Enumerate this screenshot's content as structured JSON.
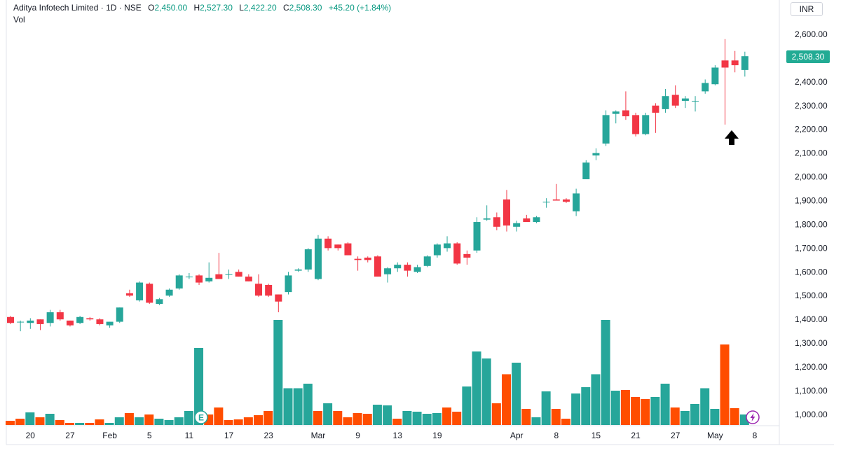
{
  "header": {
    "symbol_title": "Aditya Infotech Limited · 1D · NSE",
    "open_label": "O",
    "open": "2,450.00",
    "high_label": "H",
    "high": "2,527.30",
    "low_label": "L",
    "low": "2,422.20",
    "close_label": "C",
    "close": "2,508.30",
    "change": "+45.20 (+1.84%)",
    "volume_label": "Vol"
  },
  "currency": "INR",
  "last_price_tag": "2,508.30",
  "colors": {
    "up": "#26a69a",
    "down": "#f23645",
    "vol_up": "#26a69a",
    "vol_down": "#ff4d00",
    "price_tag": "#22ab94",
    "value_text": "#089981"
  },
  "markers": {
    "earnings_badge": "E",
    "dividend_icon": "lightning-icon",
    "arrow": "up-arrow-icon"
  },
  "chart_data": {
    "type": "candlestick",
    "y_axis": {
      "min": 1000,
      "max": 2600,
      "ticks": [
        "1,000.00",
        "1,100.00",
        "1,200.00",
        "1,300.00",
        "1,400.00",
        "1,500.00",
        "1,600.00",
        "1,700.00",
        "1,800.00",
        "1,900.00",
        "2,000.00",
        "2,100.00",
        "2,200.00",
        "2,300.00",
        "2,400.00",
        "2,500.00",
        "2,600.00"
      ]
    },
    "x_ticks": [
      {
        "label": "20",
        "index": 2
      },
      {
        "label": "27",
        "index": 6
      },
      {
        "label": "Feb",
        "index": 10
      },
      {
        "label": "5",
        "index": 14
      },
      {
        "label": "11",
        "index": 18
      },
      {
        "label": "17",
        "index": 22
      },
      {
        "label": "23",
        "index": 26
      },
      {
        "label": "Mar",
        "index": 31
      },
      {
        "label": "9",
        "index": 35
      },
      {
        "label": "13",
        "index": 39
      },
      {
        "label": "19",
        "index": 43
      },
      {
        "label": "Apr",
        "index": 51
      },
      {
        "label": "8",
        "index": 55
      },
      {
        "label": "15",
        "index": 59
      },
      {
        "label": "21",
        "index": 63
      },
      {
        "label": "27",
        "index": 67
      },
      {
        "label": "May",
        "index": 71
      },
      {
        "label": "8",
        "index": 75
      }
    ],
    "candles": [
      {
        "o": 1410,
        "h": 1415,
        "l": 1380,
        "c": 1385
      },
      {
        "o": 1390,
        "h": 1395,
        "l": 1350,
        "c": 1390
      },
      {
        "o": 1385,
        "h": 1405,
        "l": 1360,
        "c": 1395
      },
      {
        "o": 1400,
        "h": 1400,
        "l": 1355,
        "c": 1380
      },
      {
        "o": 1385,
        "h": 1440,
        "l": 1370,
        "c": 1430
      },
      {
        "o": 1430,
        "h": 1440,
        "l": 1395,
        "c": 1400
      },
      {
        "o": 1395,
        "h": 1395,
        "l": 1370,
        "c": 1375
      },
      {
        "o": 1385,
        "h": 1415,
        "l": 1380,
        "c": 1410
      },
      {
        "o": 1405,
        "h": 1410,
        "l": 1395,
        "c": 1400
      },
      {
        "o": 1400,
        "h": 1405,
        "l": 1375,
        "c": 1380
      },
      {
        "o": 1375,
        "h": 1390,
        "l": 1365,
        "c": 1390
      },
      {
        "o": 1390,
        "h": 1450,
        "l": 1385,
        "c": 1450
      },
      {
        "o": 1510,
        "h": 1525,
        "l": 1495,
        "c": 1500
      },
      {
        "o": 1480,
        "h": 1560,
        "l": 1475,
        "c": 1555
      },
      {
        "o": 1550,
        "h": 1555,
        "l": 1465,
        "c": 1470
      },
      {
        "o": 1465,
        "h": 1490,
        "l": 1460,
        "c": 1485
      },
      {
        "o": 1500,
        "h": 1530,
        "l": 1495,
        "c": 1525
      },
      {
        "o": 1530,
        "h": 1590,
        "l": 1525,
        "c": 1585
      },
      {
        "o": 1580,
        "h": 1595,
        "l": 1570,
        "c": 1580
      },
      {
        "o": 1585,
        "h": 1590,
        "l": 1545,
        "c": 1555
      },
      {
        "o": 1560,
        "h": 1640,
        "l": 1555,
        "c": 1575
      },
      {
        "o": 1590,
        "h": 1680,
        "l": 1575,
        "c": 1570
      },
      {
        "o": 1590,
        "h": 1610,
        "l": 1570,
        "c": 1590
      },
      {
        "o": 1600,
        "h": 1610,
        "l": 1580,
        "c": 1580
      },
      {
        "o": 1580,
        "h": 1590,
        "l": 1560,
        "c": 1560
      },
      {
        "o": 1550,
        "h": 1590,
        "l": 1495,
        "c": 1500
      },
      {
        "o": 1545,
        "h": 1550,
        "l": 1495,
        "c": 1500
      },
      {
        "o": 1505,
        "h": 1505,
        "l": 1430,
        "c": 1475
      },
      {
        "o": 1515,
        "h": 1600,
        "l": 1505,
        "c": 1585
      },
      {
        "o": 1605,
        "h": 1615,
        "l": 1600,
        "c": 1610
      },
      {
        "o": 1610,
        "h": 1700,
        "l": 1600,
        "c": 1695
      },
      {
        "o": 1570,
        "h": 1755,
        "l": 1565,
        "c": 1740
      },
      {
        "o": 1740,
        "h": 1750,
        "l": 1690,
        "c": 1700
      },
      {
        "o": 1715,
        "h": 1715,
        "l": 1690,
        "c": 1700
      },
      {
        "o": 1720,
        "h": 1725,
        "l": 1670,
        "c": 1670
      },
      {
        "o": 1655,
        "h": 1665,
        "l": 1605,
        "c": 1650
      },
      {
        "o": 1660,
        "h": 1665,
        "l": 1640,
        "c": 1650
      },
      {
        "o": 1665,
        "h": 1670,
        "l": 1580,
        "c": 1580
      },
      {
        "o": 1590,
        "h": 1620,
        "l": 1555,
        "c": 1615
      },
      {
        "o": 1615,
        "h": 1640,
        "l": 1600,
        "c": 1630
      },
      {
        "o": 1630,
        "h": 1640,
        "l": 1580,
        "c": 1605
      },
      {
        "o": 1600,
        "h": 1630,
        "l": 1595,
        "c": 1620
      },
      {
        "o": 1625,
        "h": 1670,
        "l": 1620,
        "c": 1665
      },
      {
        "o": 1670,
        "h": 1720,
        "l": 1660,
        "c": 1715
      },
      {
        "o": 1700,
        "h": 1750,
        "l": 1685,
        "c": 1720
      },
      {
        "o": 1720,
        "h": 1725,
        "l": 1630,
        "c": 1635
      },
      {
        "o": 1675,
        "h": 1690,
        "l": 1630,
        "c": 1660
      },
      {
        "o": 1690,
        "h": 1830,
        "l": 1680,
        "c": 1810
      },
      {
        "o": 1820,
        "h": 1880,
        "l": 1815,
        "c": 1825
      },
      {
        "o": 1830,
        "h": 1850,
        "l": 1775,
        "c": 1790
      },
      {
        "o": 1905,
        "h": 1945,
        "l": 1770,
        "c": 1795
      },
      {
        "o": 1790,
        "h": 1815,
        "l": 1770,
        "c": 1805
      },
      {
        "o": 1825,
        "h": 1840,
        "l": 1810,
        "c": 1810
      },
      {
        "o": 1810,
        "h": 1835,
        "l": 1805,
        "c": 1830
      },
      {
        "o": 1895,
        "h": 1910,
        "l": 1870,
        "c": 1895
      },
      {
        "o": 1905,
        "h": 1970,
        "l": 1900,
        "c": 1900
      },
      {
        "o": 1905,
        "h": 1910,
        "l": 1890,
        "c": 1895
      },
      {
        "o": 1855,
        "h": 1950,
        "l": 1835,
        "c": 1930
      },
      {
        "o": 1990,
        "h": 2070,
        "l": 1990,
        "c": 2060
      },
      {
        "o": 2090,
        "h": 2120,
        "l": 2070,
        "c": 2100
      },
      {
        "o": 2140,
        "h": 2280,
        "l": 2130,
        "c": 2260
      },
      {
        "o": 2265,
        "h": 2280,
        "l": 2225,
        "c": 2275
      },
      {
        "o": 2280,
        "h": 2360,
        "l": 2240,
        "c": 2255
      },
      {
        "o": 2260,
        "h": 2270,
        "l": 2170,
        "c": 2180
      },
      {
        "o": 2180,
        "h": 2270,
        "l": 2175,
        "c": 2260
      },
      {
        "o": 2300,
        "h": 2310,
        "l": 2185,
        "c": 2270
      },
      {
        "o": 2285,
        "h": 2370,
        "l": 2270,
        "c": 2340
      },
      {
        "o": 2345,
        "h": 2385,
        "l": 2290,
        "c": 2300
      },
      {
        "o": 2320,
        "h": 2340,
        "l": 2290,
        "c": 2330
      },
      {
        "o": 2320,
        "h": 2340,
        "l": 2275,
        "c": 2320
      },
      {
        "o": 2360,
        "h": 2410,
        "l": 2350,
        "c": 2395
      },
      {
        "o": 2390,
        "h": 2470,
        "l": 2385,
        "c": 2460
      },
      {
        "o": 2490,
        "h": 2580,
        "l": 2220,
        "c": 2460
      },
      {
        "o": 2490,
        "h": 2530,
        "l": 2440,
        "c": 2470
      },
      {
        "o": 2450,
        "h": 2527,
        "l": 2422,
        "c": 2508
      }
    ],
    "volume_bars": [
      {
        "v": 0.12,
        "up": false
      },
      {
        "v": 0.18,
        "up": false
      },
      {
        "v": 0.36,
        "up": true
      },
      {
        "v": 0.22,
        "up": false
      },
      {
        "v": 0.32,
        "up": true
      },
      {
        "v": 0.14,
        "up": false
      },
      {
        "v": 0.06,
        "up": false
      },
      {
        "v": 0.06,
        "up": true
      },
      {
        "v": 0.06,
        "up": false
      },
      {
        "v": 0.16,
        "up": false
      },
      {
        "v": 0.06,
        "up": true
      },
      {
        "v": 0.22,
        "up": true
      },
      {
        "v": 0.34,
        "up": false
      },
      {
        "v": 0.22,
        "up": true
      },
      {
        "v": 0.3,
        "up": false
      },
      {
        "v": 0.18,
        "up": true
      },
      {
        "v": 0.14,
        "up": true
      },
      {
        "v": 0.22,
        "up": true
      },
      {
        "v": 0.4,
        "up": true
      },
      {
        "v": 2.2,
        "up": true
      },
      {
        "v": 0.3,
        "up": false
      },
      {
        "v": 0.5,
        "up": false
      },
      {
        "v": 0.14,
        "up": false
      },
      {
        "v": 0.16,
        "up": false
      },
      {
        "v": 0.22,
        "up": false
      },
      {
        "v": 0.28,
        "up": false
      },
      {
        "v": 0.4,
        "up": false
      },
      {
        "v": 3.0,
        "up": true
      },
      {
        "v": 1.05,
        "up": true
      },
      {
        "v": 1.05,
        "up": true
      },
      {
        "v": 1.18,
        "up": true
      },
      {
        "v": 0.4,
        "up": false
      },
      {
        "v": 0.62,
        "up": true
      },
      {
        "v": 0.4,
        "up": false
      },
      {
        "v": 0.22,
        "up": false
      },
      {
        "v": 0.34,
        "up": false
      },
      {
        "v": 0.32,
        "up": false
      },
      {
        "v": 0.58,
        "up": true
      },
      {
        "v": 0.56,
        "up": true
      },
      {
        "v": 0.18,
        "up": false
      },
      {
        "v": 0.4,
        "up": true
      },
      {
        "v": 0.38,
        "up": true
      },
      {
        "v": 0.32,
        "up": true
      },
      {
        "v": 0.34,
        "up": true
      },
      {
        "v": 0.5,
        "up": false
      },
      {
        "v": 0.38,
        "up": false
      },
      {
        "v": 1.1,
        "up": true
      },
      {
        "v": 2.1,
        "up": true
      },
      {
        "v": 1.9,
        "up": true
      },
      {
        "v": 0.62,
        "up": false
      },
      {
        "v": 1.45,
        "up": false
      },
      {
        "v": 1.78,
        "up": true
      },
      {
        "v": 0.46,
        "up": false
      },
      {
        "v": 0.22,
        "up": true
      },
      {
        "v": 0.96,
        "up": true
      },
      {
        "v": 0.46,
        "up": false
      },
      {
        "v": 0.18,
        "up": false
      },
      {
        "v": 0.9,
        "up": true
      },
      {
        "v": 1.08,
        "up": true
      },
      {
        "v": 1.45,
        "up": true
      },
      {
        "v": 3.0,
        "up": true
      },
      {
        "v": 0.98,
        "up": true
      },
      {
        "v": 1.0,
        "up": false
      },
      {
        "v": 0.8,
        "up": false
      },
      {
        "v": 0.74,
        "up": false
      },
      {
        "v": 0.8,
        "up": true
      },
      {
        "v": 1.18,
        "up": true
      },
      {
        "v": 0.5,
        "up": false
      },
      {
        "v": 0.4,
        "up": true
      },
      {
        "v": 0.6,
        "up": true
      },
      {
        "v": 1.05,
        "up": true
      },
      {
        "v": 0.46,
        "up": true
      },
      {
        "v": 2.3,
        "up": false
      },
      {
        "v": 0.48,
        "up": false
      },
      {
        "v": 0.3,
        "up": true
      }
    ]
  }
}
